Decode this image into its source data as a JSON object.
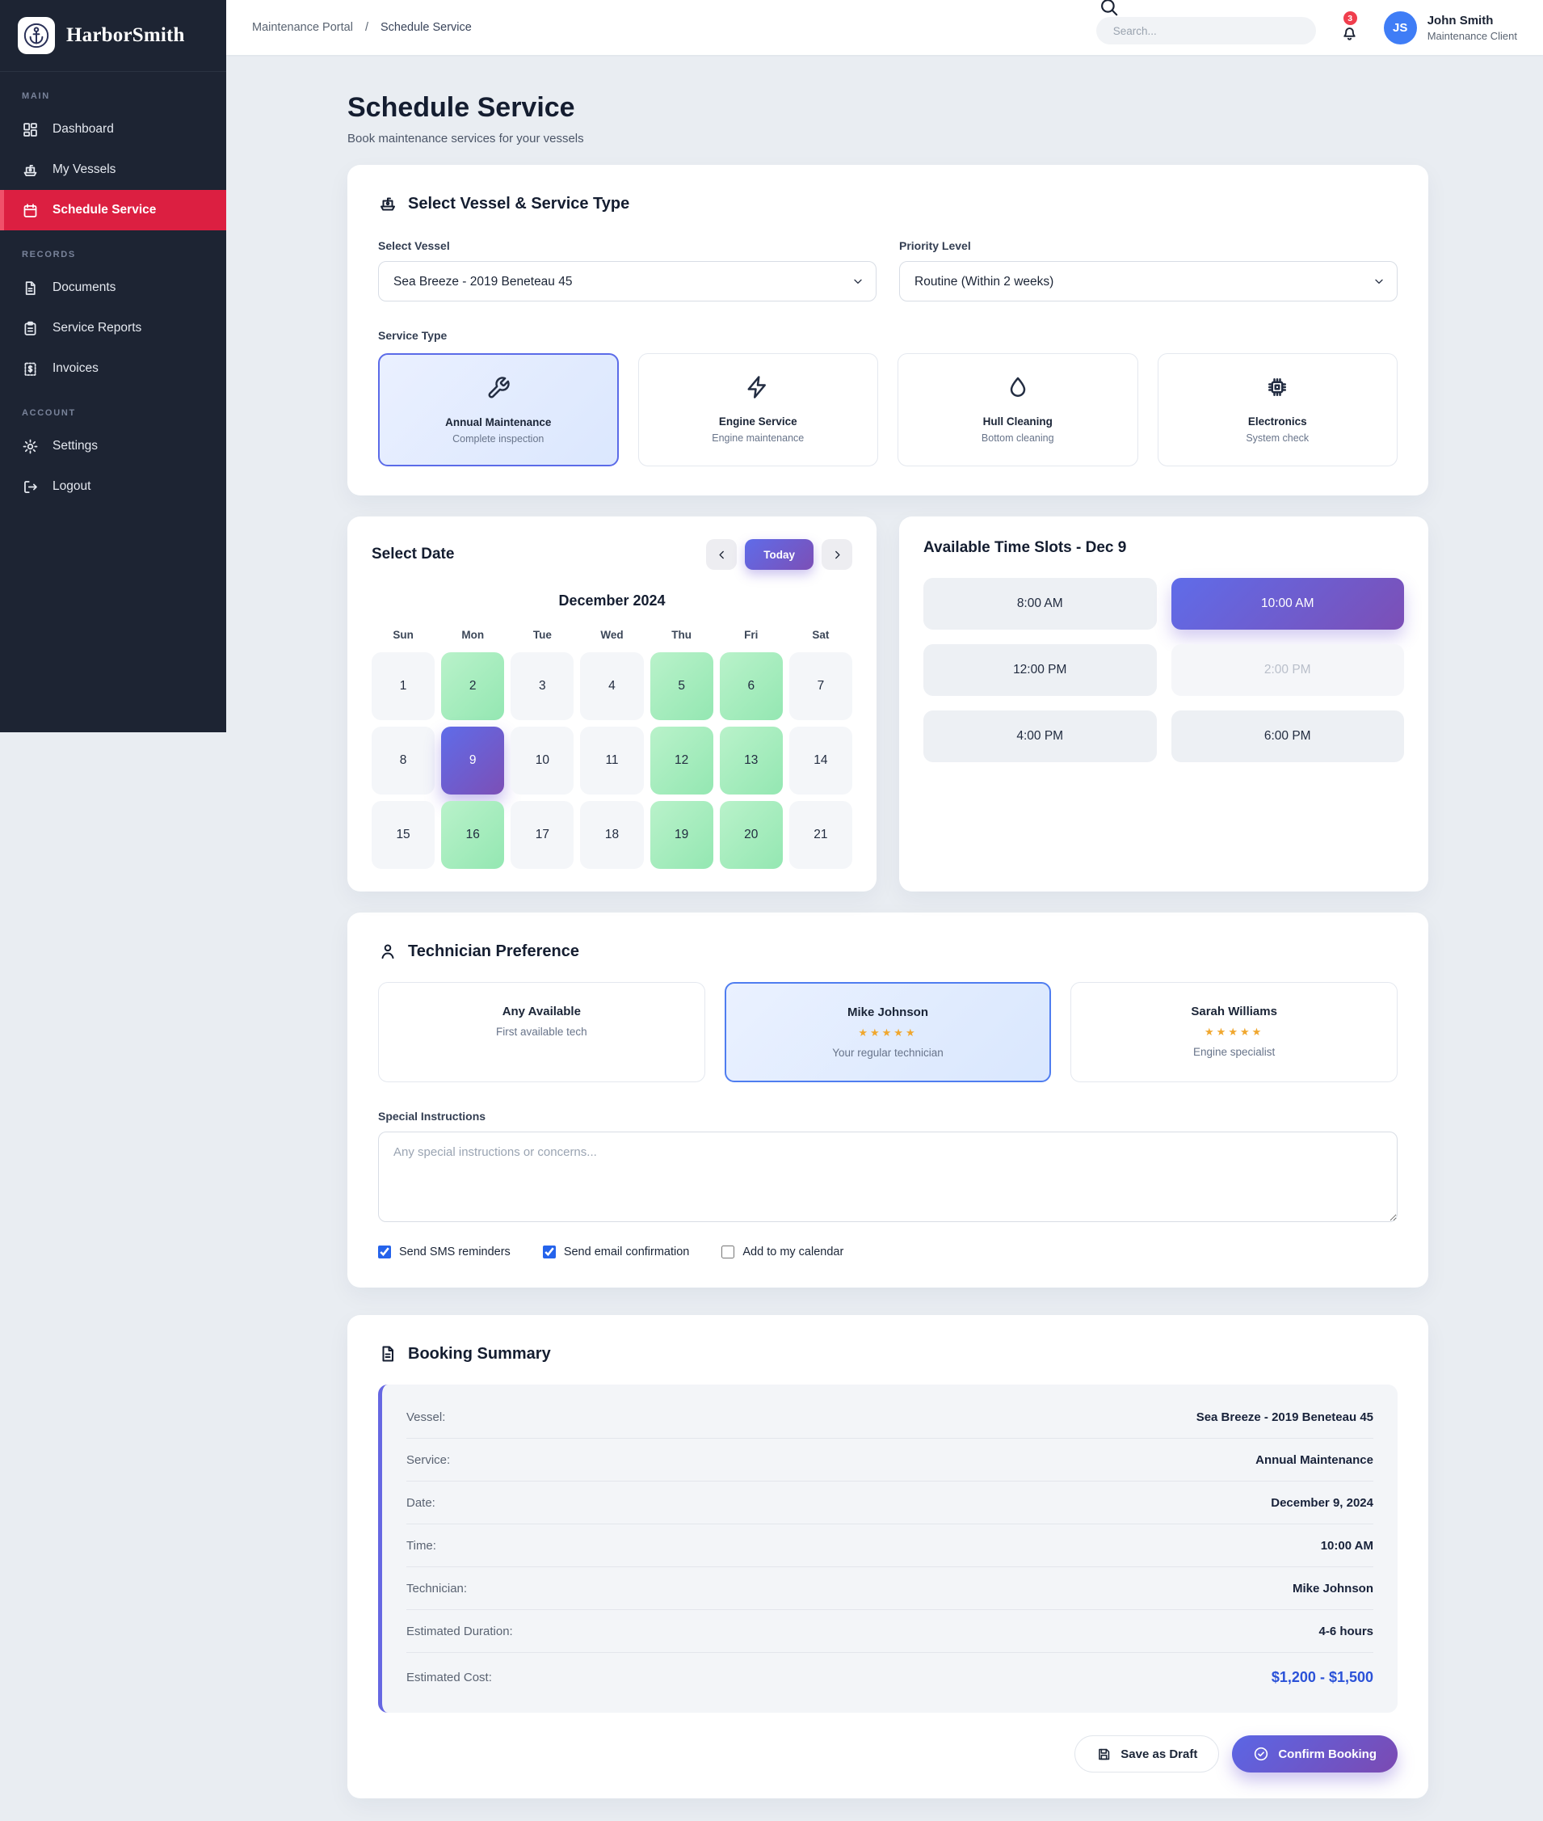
{
  "brand": {
    "name": "HarborSmith",
    "logo_icon": "anchor-icon"
  },
  "sidebar": {
    "sections": [
      {
        "label": "MAIN",
        "items": [
          {
            "label": "Dashboard",
            "icon": "dashboard-icon",
            "active": false
          },
          {
            "label": "My Vessels",
            "icon": "boat-icon",
            "active": false
          },
          {
            "label": "Schedule Service",
            "icon": "calendar-icon",
            "active": true
          }
        ]
      },
      {
        "label": "RECORDS",
        "items": [
          {
            "label": "Documents",
            "icon": "file-text-icon",
            "active": false
          },
          {
            "label": "Service Reports",
            "icon": "clipboard-icon",
            "active": false
          },
          {
            "label": "Invoices",
            "icon": "receipt-icon",
            "active": false
          }
        ]
      },
      {
        "label": "ACCOUNT",
        "items": [
          {
            "label": "Settings",
            "icon": "gear-icon",
            "active": false
          },
          {
            "label": "Logout",
            "icon": "logout-icon",
            "active": false
          }
        ]
      }
    ]
  },
  "header": {
    "breadcrumb": {
      "parent": "Maintenance Portal",
      "separator": "/",
      "current": "Schedule Service"
    },
    "search_placeholder": "Search...",
    "search_icon": "search-icon",
    "bell_icon": "bell-icon",
    "notification_count": "3",
    "user": {
      "initials": "JS",
      "name": "John Smith",
      "role": "Maintenance Client"
    }
  },
  "page": {
    "title": "Schedule Service",
    "subtitle": "Book maintenance services for your vessels"
  },
  "vessel_section": {
    "icon": "boat-icon",
    "title": "Select Vessel & Service Type",
    "vessel_label": "Select Vessel",
    "vessel_value": "Sea Breeze - 2019 Beneteau 45",
    "priority_label": "Priority Level",
    "priority_value": "Routine (Within 2 weeks)",
    "service_type_label": "Service Type",
    "services": [
      {
        "name": "Annual Maintenance",
        "desc": "Complete inspection",
        "icon": "wrench-icon",
        "selected": true
      },
      {
        "name": "Engine Service",
        "desc": "Engine maintenance",
        "icon": "bolt-icon",
        "selected": false
      },
      {
        "name": "Hull Cleaning",
        "desc": "Bottom cleaning",
        "icon": "droplet-icon",
        "selected": false
      },
      {
        "name": "Electronics",
        "desc": "System check",
        "icon": "chip-icon",
        "selected": false
      }
    ]
  },
  "calendar": {
    "title": "Select Date",
    "prev_icon": "chevron-left-icon",
    "next_icon": "chevron-right-icon",
    "today_label": "Today",
    "month": "December 2024",
    "weekdays": [
      "Sun",
      "Mon",
      "Tue",
      "Wed",
      "Thu",
      "Fri",
      "Sat"
    ],
    "days": [
      {
        "n": "1",
        "state": "default"
      },
      {
        "n": "2",
        "state": "available"
      },
      {
        "n": "3",
        "state": "default"
      },
      {
        "n": "4",
        "state": "default"
      },
      {
        "n": "5",
        "state": "available"
      },
      {
        "n": "6",
        "state": "available"
      },
      {
        "n": "7",
        "state": "default"
      },
      {
        "n": "8",
        "state": "default"
      },
      {
        "n": "9",
        "state": "selected"
      },
      {
        "n": "10",
        "state": "default"
      },
      {
        "n": "11",
        "state": "default"
      },
      {
        "n": "12",
        "state": "available"
      },
      {
        "n": "13",
        "state": "available"
      },
      {
        "n": "14",
        "state": "default"
      },
      {
        "n": "15",
        "state": "default"
      },
      {
        "n": "16",
        "state": "available"
      },
      {
        "n": "17",
        "state": "default"
      },
      {
        "n": "18",
        "state": "default"
      },
      {
        "n": "19",
        "state": "available"
      },
      {
        "n": "20",
        "state": "available"
      },
      {
        "n": "21",
        "state": "default"
      }
    ]
  },
  "timeslots": {
    "title": "Available Time Slots - Dec 9",
    "slots": [
      {
        "time": "8:00 AM",
        "state": "default"
      },
      {
        "time": "10:00 AM",
        "state": "selected"
      },
      {
        "time": "12:00 PM",
        "state": "default"
      },
      {
        "time": "2:00 PM",
        "state": "disabled"
      },
      {
        "time": "4:00 PM",
        "state": "default"
      },
      {
        "time": "6:00 PM",
        "state": "default"
      }
    ]
  },
  "technician": {
    "icon": "person-icon",
    "title": "Technician Preference",
    "options": [
      {
        "name": "Any Available",
        "stars": "",
        "desc": "First available tech",
        "selected": false
      },
      {
        "name": "Mike Johnson",
        "stars": "★★★★★",
        "desc": "Your regular technician",
        "selected": true
      },
      {
        "name": "Sarah Williams",
        "stars": "★★★★★",
        "desc": "Engine specialist",
        "selected": false
      }
    ],
    "instructions_label": "Special Instructions",
    "instructions_placeholder": "Any special instructions or concerns...",
    "reminders": [
      {
        "label": "Send SMS reminders",
        "checked": true
      },
      {
        "label": "Send email confirmation",
        "checked": true
      },
      {
        "label": "Add to my calendar",
        "checked": false
      }
    ]
  },
  "summary": {
    "icon": "file-text-icon",
    "title": "Booking Summary",
    "rows": [
      {
        "label": "Vessel:",
        "value": "Sea Breeze - 2019 Beneteau 45",
        "highlight": false
      },
      {
        "label": "Service:",
        "value": "Annual Maintenance",
        "highlight": false
      },
      {
        "label": "Date:",
        "value": "December 9, 2024",
        "highlight": false
      },
      {
        "label": "Time:",
        "value": "10:00 AM",
        "highlight": false
      },
      {
        "label": "Technician:",
        "value": "Mike Johnson",
        "highlight": false
      },
      {
        "label": "Estimated Duration:",
        "value": "4-6 hours",
        "highlight": false
      },
      {
        "label": "Estimated Cost:",
        "value": "$1,200 - $1,500",
        "highlight": true
      }
    ],
    "draft_button": {
      "label": "Save as Draft",
      "icon": "save-icon"
    },
    "confirm_button": {
      "label": "Confirm Booking",
      "icon": "check-circle-icon"
    }
  },
  "colors": {
    "sidebar_bg": "#1d2433",
    "accent_red": "#dc1f41",
    "accent_gradient_start": "#5f6ce9",
    "accent_gradient_end": "#7c4fb6",
    "available_green": "#a5edbd",
    "selected_blue_border": "#4f7df0",
    "cost_blue": "#2b52d8",
    "avatar_blue": "#3f7df6",
    "badge_red": "#f03e4d",
    "star_gold": "#f0a72e"
  }
}
